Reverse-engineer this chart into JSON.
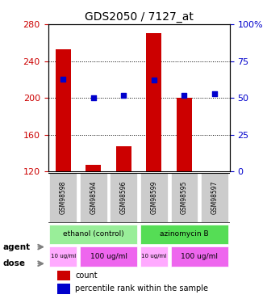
{
  "title": "GDS2050 / 7127_at",
  "samples": [
    "GSM98598",
    "GSM98594",
    "GSM98596",
    "GSM98599",
    "GSM98595",
    "GSM98597"
  ],
  "bar_values": [
    253,
    127,
    148,
    270,
    200,
    120
  ],
  "dot_values": [
    63,
    50,
    52,
    62,
    52,
    53
  ],
  "ylim_left": [
    120,
    280
  ],
  "ylim_right": [
    0,
    100
  ],
  "yticks_left": [
    120,
    160,
    200,
    240,
    280
  ],
  "yticks_right": [
    0,
    25,
    50,
    75,
    100
  ],
  "bar_color": "#cc0000",
  "dot_color": "#0000cc",
  "agent_labels": [
    {
      "text": "ethanol (control)",
      "color": "#99ff99",
      "start": 0,
      "end": 3
    },
    {
      "text": "azinomycin B",
      "color": "#66ff66",
      "start": 3,
      "end": 6
    }
  ],
  "dose_labels": [
    {
      "text": "10 ug/ml",
      "color": "#ff99ff",
      "start": 0,
      "end": 1
    },
    {
      "text": "100 ug/ml",
      "color": "#ff66ff",
      "start": 1,
      "end": 3
    },
    {
      "text": "10 ug/ml",
      "color": "#ff99ff",
      "start": 3,
      "end": 4
    },
    {
      "text": "100 ug/ml",
      "color": "#ff66ff",
      "start": 4,
      "end": 6
    }
  ],
  "agent_row_color_left": "#ccffcc",
  "agent_row_color_right": "#66ee66",
  "dose_row_color_small": "#ffaaff",
  "dose_row_color_large": "#ee66ee",
  "sample_bg_color": "#cccccc",
  "legend_count_color": "#cc0000",
  "legend_dot_color": "#0000cc"
}
